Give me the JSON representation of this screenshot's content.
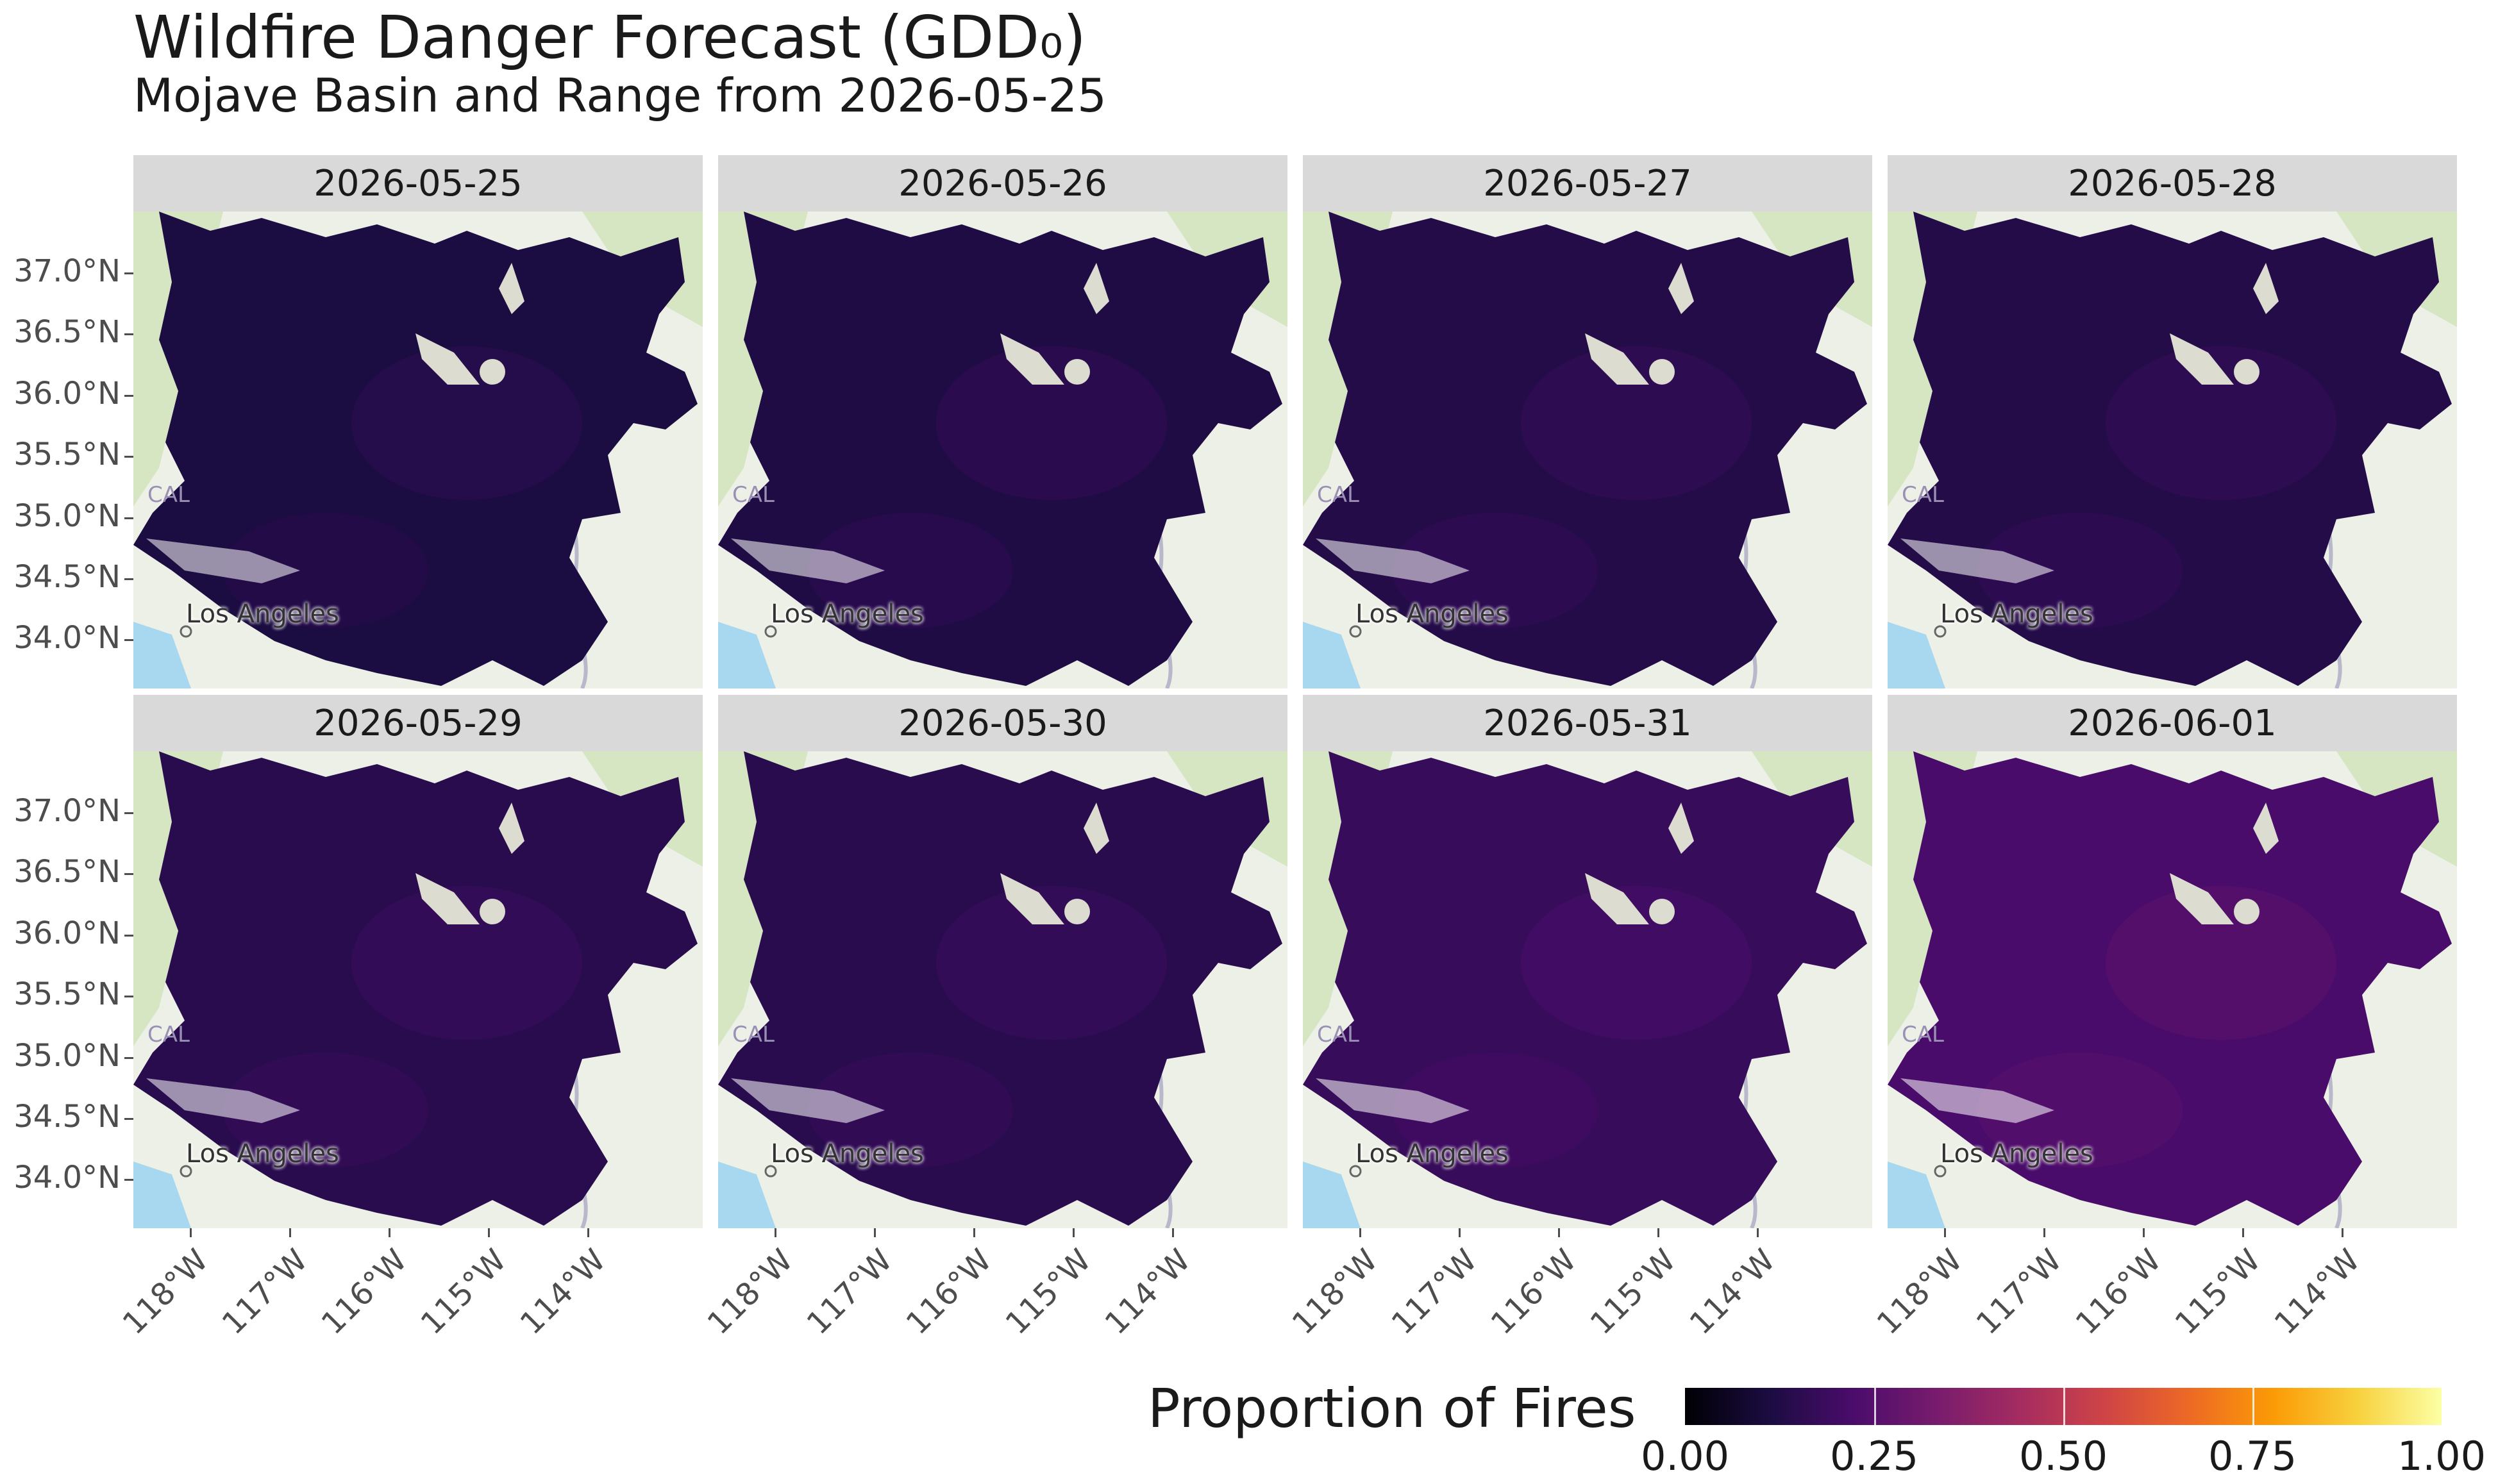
{
  "title": "Wildfire Danger Forecast (GDD₀)",
  "subtitle": "Mojave Basin and Range from 2026-05-25",
  "map_labels": {
    "city": "Los Angeles",
    "state_fragment": "CAL"
  },
  "legend": {
    "title": "Proportion of Fires",
    "ticks": [
      "0.00",
      "0.25",
      "0.50",
      "0.75",
      "1.00"
    ],
    "colormap": "inferno"
  },
  "y_axis_ticks": [
    "37.0°N",
    "36.5°N",
    "36.0°N",
    "35.5°N",
    "35.0°N",
    "34.5°N",
    "34.0°N"
  ],
  "x_axis_ticks": [
    "118°W",
    "117°W",
    "116°W",
    "115°W",
    "114°W"
  ],
  "panels": [
    {
      "date": "2026-05-25",
      "mean_level": 0.1
    },
    {
      "date": "2026-05-26",
      "mean_level": 0.11
    },
    {
      "date": "2026-05-27",
      "mean_level": 0.12
    },
    {
      "date": "2026-05-28",
      "mean_level": 0.12
    },
    {
      "date": "2026-05-29",
      "mean_level": 0.13
    },
    {
      "date": "2026-05-30",
      "mean_level": 0.13
    },
    {
      "date": "2026-05-31",
      "mean_level": 0.16
    },
    {
      "date": "2026-06-01",
      "mean_level": 0.2
    }
  ],
  "colors": {
    "strip": "#d9d9d9",
    "basemap_land": "#edf0e6",
    "basemap_green": "#d6e6c2",
    "water": "#a8d8f0",
    "low": "#1f0c3f",
    "high": "#3b1070"
  }
}
